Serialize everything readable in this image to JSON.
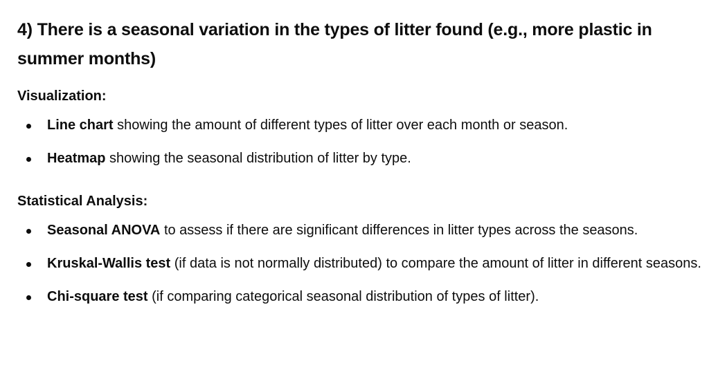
{
  "heading": "4) There is a seasonal variation in the types of litter found (e.g., more plastic in summer months)",
  "visualization": {
    "label": "Visualization:",
    "items": [
      {
        "term": "Line chart",
        "text": " showing the amount of different types of litter over each month or season."
      },
      {
        "term": "Heatmap",
        "text": " showing the seasonal distribution of litter by type."
      }
    ]
  },
  "statistical": {
    "label": "Statistical Analysis:",
    "items": [
      {
        "term": "Seasonal ANOVA",
        "text": " to assess if there are significant differences in litter types across the seasons."
      },
      {
        "term": "Kruskal-Wallis test",
        "text": " (if data is not normally distributed) to compare the amount of litter in different seasons."
      },
      {
        "term": "Chi-square test",
        "text": " (if comparing categorical seasonal distribution of types of litter)."
      }
    ]
  }
}
